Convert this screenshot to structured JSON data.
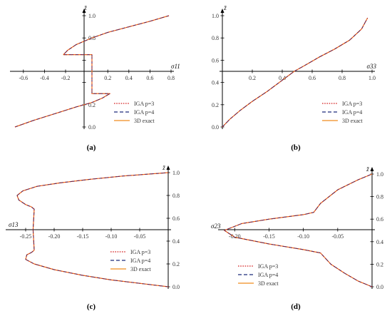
{
  "chart_data": [
    {
      "type": "line",
      "panel_label": "(a)",
      "xlabel": "σ11",
      "ylabel": "z̄",
      "xlim": [
        -0.7,
        0.8
      ],
      "ylim": [
        0.0,
        1.0
      ],
      "xticks": [
        -0.6,
        -0.4,
        -0.2,
        0.2,
        0.4,
        0.6,
        0.8
      ],
      "xtick_labels": [
        "-0.6",
        "-0.4",
        "-0.2",
        "0.2",
        "0.4",
        "0.6",
        "0.8"
      ],
      "yticks": [
        0.0,
        0.2,
        0.4,
        0.6,
        0.8,
        1.0
      ],
      "ytick_labels": [
        "0.0",
        "0.2",
        "",
        "",
        "0.8",
        "1.0"
      ],
      "legend": [
        "IGA p=3",
        "IGA p=4",
        "3D exact"
      ],
      "legend_position": "lower-right",
      "series": [
        {
          "name": "IGA p=3",
          "color": "#d42020",
          "style": "dotted",
          "x": [
            -0.68,
            -0.5,
            -0.3,
            -0.1,
            0.05,
            0.15,
            0.22,
            0.05,
            0.05,
            0.05,
            0.05,
            0.0,
            -0.22,
            -0.18,
            -0.1,
            0.05,
            0.2,
            0.4,
            0.6,
            0.78
          ],
          "y": [
            0.0,
            0.06,
            0.12,
            0.18,
            0.22,
            0.26,
            0.3,
            0.3,
            0.38,
            0.5,
            0.65,
            0.65,
            0.65,
            0.69,
            0.74,
            0.8,
            0.85,
            0.9,
            0.95,
            1.0
          ]
        },
        {
          "name": "IGA p=4",
          "color": "#1c2a7a",
          "style": "dashed",
          "x": [
            -0.68,
            -0.5,
            -0.3,
            -0.1,
            0.05,
            0.15,
            0.22,
            0.05,
            0.05,
            0.05,
            0.05,
            0.0,
            -0.22,
            -0.18,
            -0.1,
            0.05,
            0.2,
            0.4,
            0.6,
            0.78
          ],
          "y": [
            0.0,
            0.06,
            0.12,
            0.18,
            0.22,
            0.26,
            0.3,
            0.3,
            0.38,
            0.5,
            0.65,
            0.65,
            0.65,
            0.69,
            0.74,
            0.8,
            0.85,
            0.9,
            0.95,
            1.0
          ]
        },
        {
          "name": "3D exact",
          "color": "#f08c1e",
          "style": "solid",
          "x": [
            -0.68,
            -0.5,
            -0.3,
            -0.1,
            0.05,
            0.15,
            0.22,
            0.05,
            0.05,
            0.05,
            0.05,
            0.0,
            -0.22,
            -0.18,
            -0.1,
            0.05,
            0.2,
            0.4,
            0.6,
            0.78
          ],
          "y": [
            0.0,
            0.06,
            0.12,
            0.18,
            0.22,
            0.26,
            0.3,
            0.3,
            0.38,
            0.5,
            0.65,
            0.65,
            0.65,
            0.69,
            0.74,
            0.8,
            0.85,
            0.9,
            0.95,
            1.0
          ]
        }
      ]
    },
    {
      "type": "line",
      "panel_label": "(b)",
      "xlabel": "σ33",
      "ylabel": "z̄",
      "xlim": [
        0.0,
        1.0
      ],
      "ylim": [
        0.0,
        1.0
      ],
      "xticks": [
        0.2,
        0.4,
        0.6,
        0.8,
        1.0
      ],
      "xtick_labels": [
        "0.2",
        "0.4",
        "0.6",
        "0.8",
        "1.0"
      ],
      "yticks": [
        0.0,
        0.2,
        0.4,
        0.6,
        0.8,
        1.0
      ],
      "ytick_labels": [
        "0.0",
        "0.2",
        "0.4",
        "0.6",
        "0.8",
        "1.0"
      ],
      "legend": [
        "IGA p=3",
        "IGA p=4",
        "3D exact"
      ],
      "legend_position": "lower-right",
      "series": [
        {
          "name": "IGA p=3",
          "color": "#d42020",
          "style": "dotted",
          "x": [
            0.0,
            0.05,
            0.12,
            0.2,
            0.3,
            0.4,
            0.48,
            0.56,
            0.65,
            0.75,
            0.85,
            0.93,
            0.97
          ],
          "y": [
            0.0,
            0.07,
            0.15,
            0.23,
            0.32,
            0.42,
            0.5,
            0.56,
            0.63,
            0.7,
            0.78,
            0.88,
            0.98
          ]
        },
        {
          "name": "IGA p=4",
          "color": "#1c2a7a",
          "style": "dashed",
          "x": [
            0.0,
            0.05,
            0.12,
            0.2,
            0.3,
            0.4,
            0.48,
            0.56,
            0.65,
            0.75,
            0.85,
            0.93,
            0.97
          ],
          "y": [
            0.0,
            0.07,
            0.15,
            0.23,
            0.32,
            0.42,
            0.5,
            0.56,
            0.63,
            0.7,
            0.78,
            0.88,
            0.98
          ]
        },
        {
          "name": "3D exact",
          "color": "#f08c1e",
          "style": "solid",
          "x": [
            0.0,
            0.05,
            0.12,
            0.2,
            0.3,
            0.4,
            0.48,
            0.56,
            0.65,
            0.75,
            0.85,
            0.93,
            0.97
          ],
          "y": [
            0.0,
            0.07,
            0.15,
            0.23,
            0.32,
            0.42,
            0.5,
            0.56,
            0.63,
            0.7,
            0.78,
            0.88,
            0.98
          ]
        }
      ]
    },
    {
      "type": "line",
      "panel_label": "(c)",
      "xlabel": "σ13",
      "ylabel": "z̄",
      "xlim": [
        -0.28,
        0.0
      ],
      "ylim": [
        0.0,
        1.0
      ],
      "xticks": [
        -0.25,
        -0.2,
        -0.15,
        -0.1,
        -0.05
      ],
      "xtick_labels": [
        "-0.25",
        "-0.20",
        "-0.15",
        "-0.10",
        "-0.05"
      ],
      "yticks": [
        0.0,
        0.2,
        0.4,
        0.6,
        0.8,
        1.0
      ],
      "ytick_labels": [
        "0.0",
        "0.2",
        "0.4",
        "0.6",
        "0.8",
        "1.0"
      ],
      "legend": [
        "IGA p=3",
        "IGA p=4",
        "3D exact"
      ],
      "legend_position": "lower-right",
      "series": [
        {
          "name": "IGA p=3",
          "color": "#d42020",
          "style": "dotted",
          "x": [
            0.0,
            -0.05,
            -0.1,
            -0.15,
            -0.2,
            -0.235,
            -0.25,
            -0.248,
            -0.24,
            -0.235,
            -0.237,
            -0.235,
            -0.24,
            -0.25,
            -0.262,
            -0.265,
            -0.255,
            -0.23,
            -0.19,
            -0.14,
            -0.08,
            0.0
          ],
          "y": [
            0.0,
            0.03,
            0.06,
            0.1,
            0.15,
            0.2,
            0.24,
            0.28,
            0.3,
            0.32,
            0.5,
            0.68,
            0.7,
            0.72,
            0.76,
            0.8,
            0.84,
            0.88,
            0.91,
            0.94,
            0.97,
            1.0
          ]
        },
        {
          "name": "IGA p=4",
          "color": "#1c2a7a",
          "style": "dashed",
          "x": [
            0.0,
            -0.05,
            -0.1,
            -0.15,
            -0.2,
            -0.235,
            -0.25,
            -0.248,
            -0.24,
            -0.235,
            -0.237,
            -0.235,
            -0.24,
            -0.25,
            -0.262,
            -0.265,
            -0.255,
            -0.23,
            -0.19,
            -0.14,
            -0.08,
            0.0
          ],
          "y": [
            0.0,
            0.03,
            0.06,
            0.1,
            0.15,
            0.2,
            0.24,
            0.28,
            0.3,
            0.32,
            0.5,
            0.68,
            0.7,
            0.72,
            0.76,
            0.8,
            0.84,
            0.88,
            0.91,
            0.94,
            0.97,
            1.0
          ]
        },
        {
          "name": "3D exact",
          "color": "#f08c1e",
          "style": "solid",
          "x": [
            0.0,
            -0.05,
            -0.1,
            -0.15,
            -0.2,
            -0.235,
            -0.25,
            -0.248,
            -0.24,
            -0.235,
            -0.237,
            -0.235,
            -0.24,
            -0.25,
            -0.262,
            -0.265,
            -0.255,
            -0.23,
            -0.19,
            -0.14,
            -0.08,
            0.0
          ],
          "y": [
            0.0,
            0.03,
            0.06,
            0.1,
            0.15,
            0.2,
            0.24,
            0.28,
            0.3,
            0.32,
            0.5,
            0.68,
            0.7,
            0.72,
            0.76,
            0.8,
            0.84,
            0.88,
            0.91,
            0.94,
            0.97,
            1.0
          ]
        }
      ]
    },
    {
      "type": "line",
      "panel_label": "(d)",
      "xlabel": "σ23",
      "ylabel": "z̄",
      "xlim": [
        -0.22,
        0.0
      ],
      "ylim": [
        0.0,
        1.0
      ],
      "xticks": [
        -0.2,
        -0.15,
        -0.1,
        -0.05
      ],
      "xtick_labels": [
        "-0.20",
        "-0.15",
        "-0.10",
        "-0.05"
      ],
      "yticks": [
        0.0,
        0.2,
        0.4,
        0.6,
        0.8,
        1.0
      ],
      "ytick_labels": [
        "0.0",
        "0.2",
        "0.4",
        "0.6",
        "0.8",
        "1.0"
      ],
      "legend": [
        "IGA p=3",
        "IGA p=4",
        "3D exact"
      ],
      "legend_position": "lower-left",
      "series": [
        {
          "name": "IGA p=3",
          "color": "#d42020",
          "style": "dotted",
          "x": [
            0.0,
            -0.02,
            -0.04,
            -0.06,
            -0.075,
            -0.1,
            -0.15,
            -0.2,
            -0.215,
            -0.19,
            -0.15,
            -0.1,
            -0.085,
            -0.075,
            -0.05,
            -0.02,
            0.0
          ],
          "y": [
            0.0,
            0.05,
            0.12,
            0.2,
            0.3,
            0.33,
            0.38,
            0.44,
            0.5,
            0.56,
            0.6,
            0.64,
            0.66,
            0.74,
            0.86,
            0.95,
            1.0
          ]
        },
        {
          "name": "IGA p=4",
          "color": "#1c2a7a",
          "style": "dashed",
          "x": [
            0.0,
            -0.02,
            -0.04,
            -0.06,
            -0.075,
            -0.1,
            -0.15,
            -0.2,
            -0.215,
            -0.19,
            -0.15,
            -0.1,
            -0.085,
            -0.075,
            -0.05,
            -0.02,
            0.0
          ],
          "y": [
            0.0,
            0.05,
            0.12,
            0.2,
            0.3,
            0.33,
            0.38,
            0.44,
            0.5,
            0.56,
            0.6,
            0.64,
            0.66,
            0.74,
            0.86,
            0.95,
            1.0
          ]
        },
        {
          "name": "3D exact",
          "color": "#f08c1e",
          "style": "solid",
          "x": [
            0.0,
            -0.02,
            -0.04,
            -0.06,
            -0.075,
            -0.1,
            -0.15,
            -0.2,
            -0.215,
            -0.19,
            -0.15,
            -0.1,
            -0.085,
            -0.075,
            -0.05,
            -0.02,
            0.0
          ],
          "y": [
            0.0,
            0.05,
            0.12,
            0.2,
            0.3,
            0.33,
            0.38,
            0.44,
            0.5,
            0.56,
            0.6,
            0.64,
            0.66,
            0.74,
            0.86,
            0.95,
            1.0
          ]
        }
      ]
    }
  ]
}
